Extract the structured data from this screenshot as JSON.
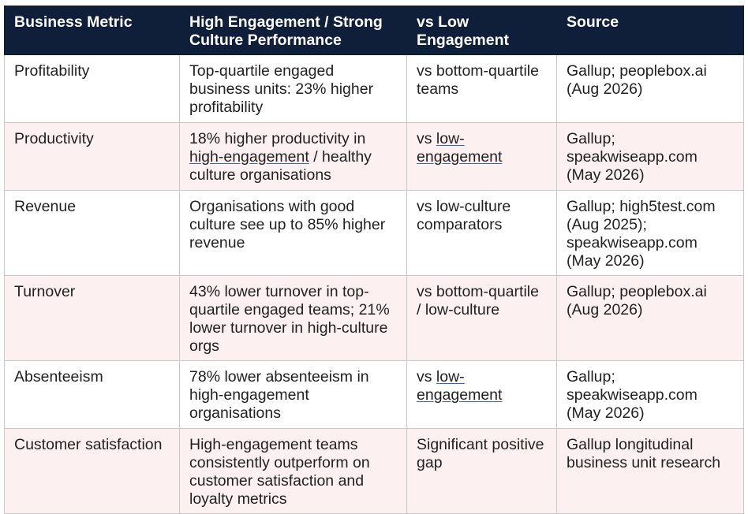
{
  "table": {
    "headers": [
      "Business Metric",
      "High Engagement / Strong Culture Performance",
      "vs Low Engagement",
      "Source"
    ],
    "rows": [
      {
        "metric": "Profitability",
        "performance": "Top-quartile engaged business units: 23% higher profitability",
        "comparison": "vs bottom-quartile teams",
        "source": "Gallup; peoplebox.ai (Aug 2026)"
      },
      {
        "metric": "Productivity",
        "performance_pre": "18% higher productivity in ",
        "performance_link": "high-engagement",
        "performance_post": " / healthy culture organisations",
        "comparison_pre": "vs ",
        "comparison_link": "low-engagement",
        "source": "Gallup; speakwiseapp.com (May 2026)"
      },
      {
        "metric": "Revenue",
        "performance": "Organisations with good culture see up to 85% higher revenue",
        "comparison": "vs low-culture comparators",
        "source": "Gallup; high5test.com (Aug 2025); speakwiseapp.com (May 2026)"
      },
      {
        "metric": "Turnover",
        "performance": "43% lower turnover in top-quartile engaged teams; 21% lower turnover in high-culture orgs",
        "comparison": "vs bottom-quartile / low-culture",
        "source": "Gallup; peoplebox.ai (Aug 2026)"
      },
      {
        "metric": "Absenteeism",
        "performance": "78% lower absenteeism in high-engagement organisations",
        "comparison_pre": "vs ",
        "comparison_link": "low-engagement",
        "source": "Gallup; speakwiseapp.com (May 2026)"
      },
      {
        "metric": "Customer satisfaction",
        "performance": "High-engagement teams consistently outperform on customer satisfaction and loyalty metrics",
        "comparison": "Significant positive gap",
        "source": "Gallup longitudinal business unit research"
      }
    ]
  }
}
